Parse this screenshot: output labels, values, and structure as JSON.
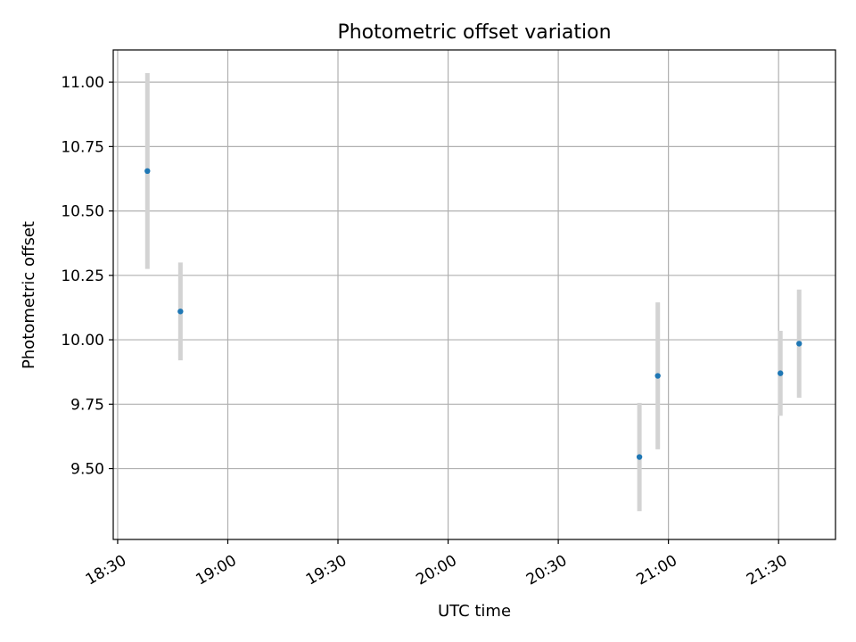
{
  "chart_data": {
    "type": "scatter",
    "title": "Photometric offset variation",
    "xlabel": "UTC time",
    "ylabel": "Photometric offset",
    "x_unit": "minutes since 18:30 UTC",
    "xlim": [
      -1.2,
      195.5
    ],
    "ylim": [
      9.225,
      11.125
    ],
    "grid": true,
    "x_ticks": [
      {
        "value": 0,
        "label": "18:30"
      },
      {
        "value": 30,
        "label": "19:00"
      },
      {
        "value": 60,
        "label": "19:30"
      },
      {
        "value": 90,
        "label": "20:00"
      },
      {
        "value": 120,
        "label": "20:30"
      },
      {
        "value": 150,
        "label": "21:00"
      },
      {
        "value": 180,
        "label": "21:30"
      }
    ],
    "y_ticks": [
      {
        "value": 9.5,
        "label": "9.50"
      },
      {
        "value": 9.75,
        "label": "9.75"
      },
      {
        "value": 10.0,
        "label": "10.00"
      },
      {
        "value": 10.25,
        "label": "10.25"
      },
      {
        "value": 10.5,
        "label": "10.50"
      },
      {
        "value": 10.75,
        "label": "10.75"
      },
      {
        "value": 11.0,
        "label": "11.00"
      }
    ],
    "series": [
      {
        "name": "photometric offset",
        "points": [
          {
            "x": 8.1,
            "y": 10.655,
            "err": 0.38
          },
          {
            "x": 17.1,
            "y": 10.11,
            "err": 0.19
          },
          {
            "x": 142.1,
            "y": 9.545,
            "err": 0.21
          },
          {
            "x": 147.1,
            "y": 9.86,
            "err": 0.285
          },
          {
            "x": 180.5,
            "y": 9.87,
            "err": 0.165
          },
          {
            "x": 185.6,
            "y": 9.985,
            "err": 0.21
          }
        ]
      }
    ],
    "colors": {
      "marker": "#1f77b4",
      "errorbar": "#d3d3d3",
      "grid": "#b0b0b0",
      "axis": "#000000"
    }
  }
}
